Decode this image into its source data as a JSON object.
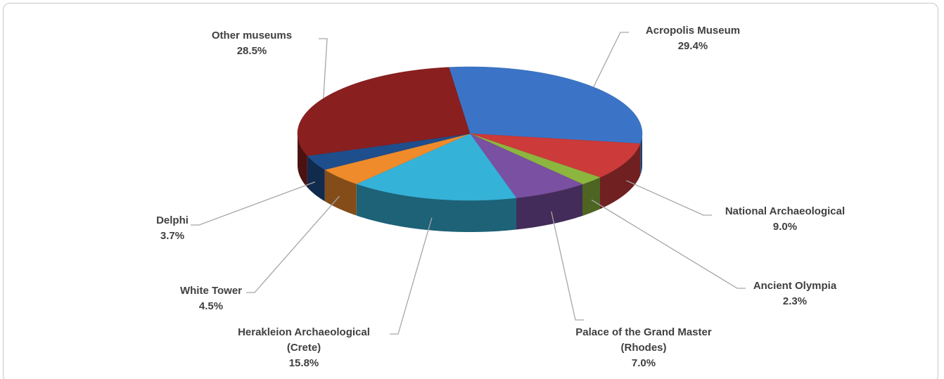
{
  "chart_data": {
    "type": "pie",
    "categories": [
      "Acropolis Museum",
      "National Archaeological",
      "Ancient Olympia",
      "Palace of the Grand Master (Rhodes)",
      "Herakleion Archaeological (Crete)",
      "White Tower",
      "Delphi",
      "Other museums"
    ],
    "values": [
      29.4,
      9.0,
      2.3,
      7.0,
      15.8,
      4.5,
      3.7,
      28.5
    ],
    "value_labels": [
      "29.4%",
      "9.0%",
      "2.3%",
      "7.0%",
      "15.8%",
      "4.5%",
      "3.7%",
      "28.5%"
    ],
    "colors": [
      "#3b74c6",
      "#cc3a3a",
      "#8cb63e",
      "#7a50a2",
      "#35b2d8",
      "#ef8b2b",
      "#1f4e8c",
      "#8a1f1f"
    ]
  }
}
